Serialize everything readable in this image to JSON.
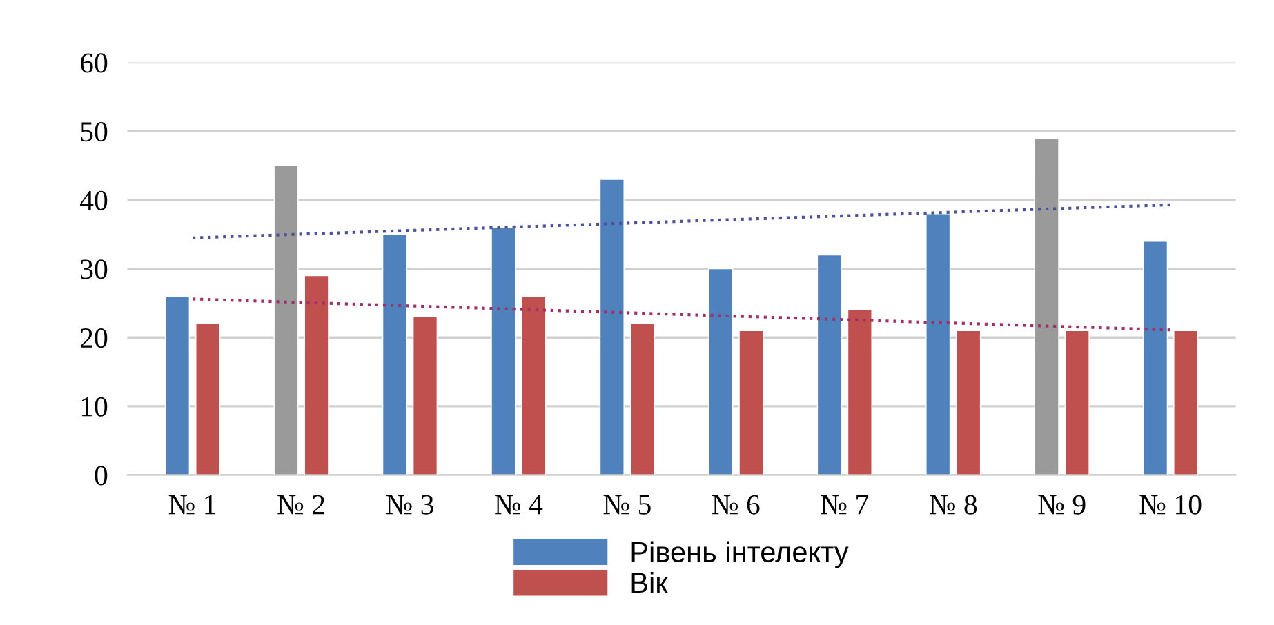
{
  "chart_data": {
    "type": "bar",
    "categories": [
      "№ 1",
      "№ 2",
      "№ 3",
      "№ 4",
      "№ 5",
      "№ 6",
      "№ 7",
      "№ 8",
      "№ 9",
      "№ 10"
    ],
    "series": [
      {
        "name": "Рівень інтелекту",
        "color": "#4f81bd",
        "colors": [
          "#4f81bd",
          "#9a9a9a",
          "#4f81bd",
          "#4f81bd",
          "#4f81bd",
          "#4f81bd",
          "#4f81bd",
          "#4f81bd",
          "#9a9a9a",
          "#4f81bd"
        ],
        "values": [
          26,
          45,
          35,
          36,
          43,
          30,
          32,
          38,
          49,
          34
        ]
      },
      {
        "name": "Вік",
        "color": "#c0504d",
        "values": [
          22,
          29,
          23,
          26,
          22,
          21,
          24,
          21,
          21,
          21
        ]
      },
      {
        "type": "line",
        "color": "#4f4f9a",
        "line_style": "dotted",
        "x": [
          "№ 1",
          "№ 10"
        ],
        "values": [
          34.5,
          39.3
        ]
      },
      {
        "type": "line",
        "color": "#a0306a",
        "line_style": "dotted",
        "x": [
          "№ 1",
          "№ 10"
        ],
        "values": [
          25.6,
          21.1
        ]
      }
    ],
    "ylim": [
      0,
      60
    ],
    "yticks": [
      0,
      10,
      20,
      30,
      40,
      50,
      60
    ],
    "grid": "y",
    "legend": "bottom"
  }
}
